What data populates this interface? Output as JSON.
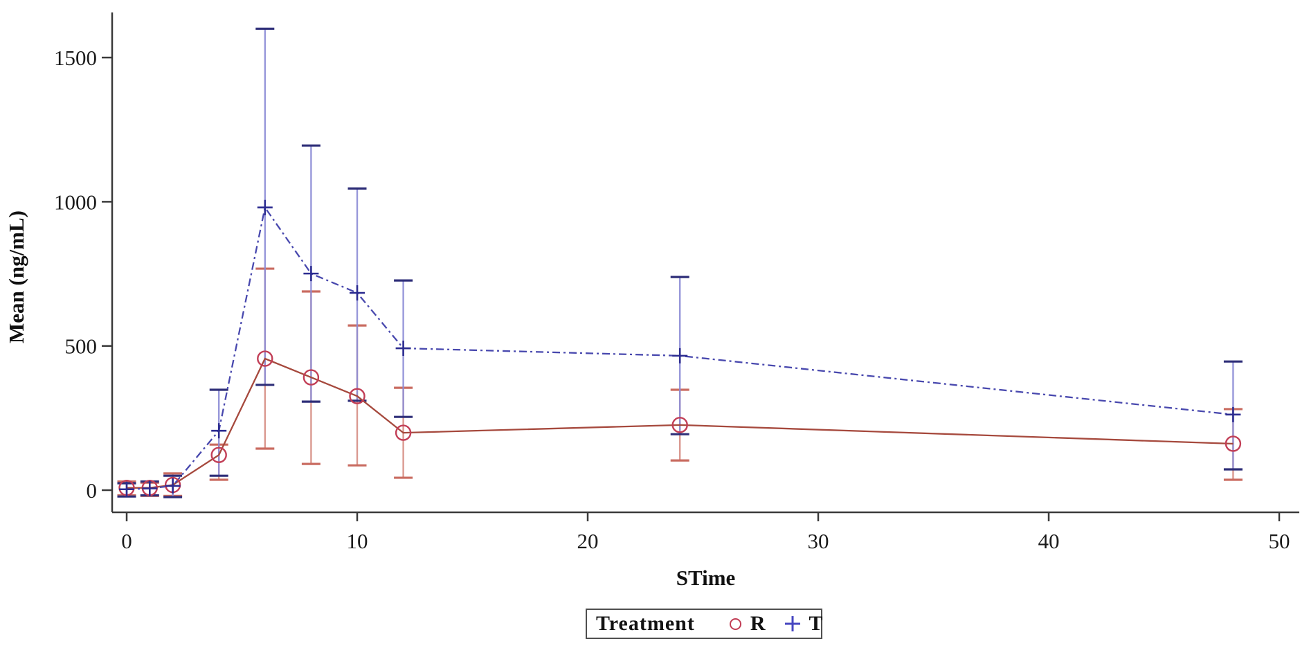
{
  "page": {
    "background": "#ffffff"
  },
  "chart_data": {
    "type": "line",
    "title": "",
    "xlabel": "STime",
    "ylabel": "Mean (ng/mL)",
    "xlim": [
      0,
      50
    ],
    "ylim": [
      0,
      1500
    ],
    "x_ticks": [
      0,
      10,
      20,
      30,
      40,
      50
    ],
    "y_ticks": [
      0,
      500,
      1000,
      1500
    ],
    "grid": false,
    "legend_position": "bottom-center",
    "x": [
      0,
      1,
      2,
      4,
      6,
      8,
      10,
      12,
      24,
      48
    ],
    "series": [
      {
        "name": "R",
        "marker": "circle",
        "line_style": "solid",
        "line_color": "#a6493d",
        "marker_color": "#c23e56",
        "errbar_stem_color": "#d68f85",
        "errbar_cap_color": "#c96b60",
        "values": [
          8,
          8,
          18,
          122,
          456,
          391,
          326,
          199,
          226,
          161
        ],
        "err_upper": [
          30,
          26,
          58,
          158,
          768,
          689,
          571,
          355,
          348,
          281
        ],
        "err_lower": [
          -18,
          -20,
          -20,
          36,
          144,
          91,
          86,
          43,
          103,
          36
        ]
      },
      {
        "name": "T",
        "marker": "plus",
        "line_style": "dash-dot",
        "line_color": "#4848ae",
        "marker_color": "#2c2c90",
        "errbar_stem_color": "#8d8dd6",
        "errbar_cap_color": "#2e2e78",
        "values": [
          3,
          6,
          15,
          206,
          980,
          751,
          684,
          492,
          466,
          262
        ],
        "err_upper": [
          24,
          30,
          50,
          348,
          1600,
          1195,
          1046,
          727,
          739,
          446
        ],
        "err_lower": [
          -22,
          -18,
          -24,
          50,
          365,
          307,
          310,
          254,
          194,
          72
        ]
      }
    ]
  },
  "legend": {
    "title": "Treatment",
    "items": [
      {
        "symbol": "circle-icon",
        "label": "R",
        "color": "#c23e56"
      },
      {
        "symbol": "plus-icon",
        "label": "T",
        "color": "#4646c0"
      }
    ]
  }
}
